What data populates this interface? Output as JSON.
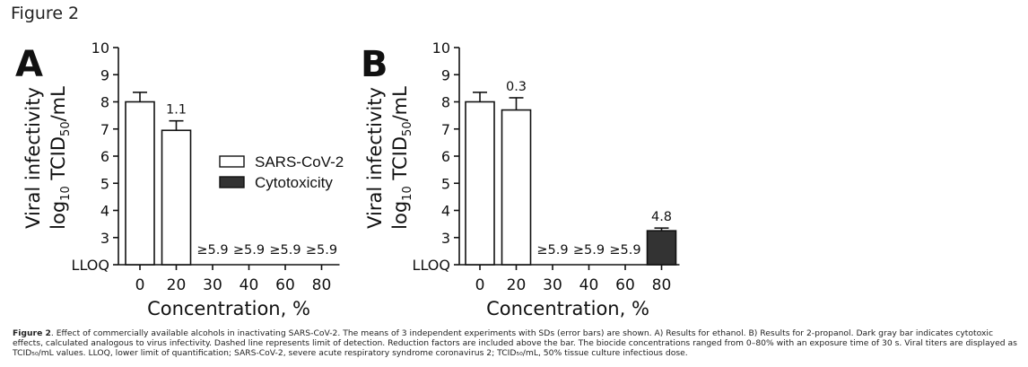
{
  "figure_title": "Figure 2",
  "caption": {
    "lead": "Figure 2",
    "text": ". Effect of commercially available alcohols in inactivating SARS-CoV-2. The means of 3 independent experiments with SDs (error bars) are shown. A) Results for ethanol. B) Results for 2-propanol. Dark gray bar indicates cytotoxic effects, calculated analogous to virus infectivity. Dashed line represents limit of detection. Reduction factors are included above the bar. The biocide concentrations ranged from 0–80% with an exposure time of 30 s. Viral titers are displayed as TCID₅₀/mL values. LLOQ, lower limit of quantification; SARS-CoV-2, severe acute respiratory syndrome coronavirus 2; TCID₅₀/mL, 50% tissue culture infectious dose."
  },
  "legend": {
    "items": [
      {
        "label": "SARS-CoV-2",
        "color": "#ffffff"
      },
      {
        "label": "Cytotoxicity",
        "color": "#333333"
      }
    ]
  },
  "colors": {
    "virus_bar": "#ffffff",
    "cytotoxicity_bar": "#333333",
    "axis": "#111111"
  },
  "chart_data": [
    {
      "type": "bar",
      "panel": "A",
      "xlabel": "Concentration, %",
      "ylabel_line1": "Viral infectivity",
      "ylabel_line2_prefix": "log",
      "ylabel_line2_sub": "10",
      "ylabel_line2_mid": " TCID",
      "ylabel_line2_sub2": "50",
      "ylabel_line2_suffix": "/mL",
      "ylim": [
        2,
        10
      ],
      "yticks": [
        "LLOQ",
        "3",
        "4",
        "5",
        "6",
        "7",
        "8",
        "9",
        "10"
      ],
      "categories": [
        "0",
        "20",
        "30",
        "40",
        "60",
        "80"
      ],
      "values": [
        8.0,
        6.95,
        null,
        null,
        null,
        null
      ],
      "errors": [
        0.35,
        0.35,
        null,
        null,
        null,
        null
      ],
      "bar_type": [
        "virus",
        "virus",
        "none",
        "none",
        "none",
        "none"
      ],
      "annotations": [
        "",
        "1.1",
        "≥5.9",
        "≥5.9",
        "≥5.9",
        "≥5.9"
      ]
    },
    {
      "type": "bar",
      "panel": "B",
      "xlabel": "Concentration, %",
      "ylabel_line1": "Viral infectivity",
      "ylabel_line2_prefix": "log",
      "ylabel_line2_sub": "10",
      "ylabel_line2_mid": " TCID",
      "ylabel_line2_sub2": "50",
      "ylabel_line2_suffix": "/mL",
      "ylim": [
        2,
        10
      ],
      "yticks": [
        "LLOQ",
        "3",
        "4",
        "5",
        "6",
        "7",
        "8",
        "9",
        "10"
      ],
      "categories": [
        "0",
        "20",
        "30",
        "40",
        "60",
        "80"
      ],
      "values": [
        8.0,
        7.7,
        null,
        null,
        null,
        3.25
      ],
      "errors": [
        0.35,
        0.45,
        null,
        null,
        null,
        0.1
      ],
      "bar_type": [
        "virus",
        "virus",
        "none",
        "none",
        "none",
        "cytotoxicity"
      ],
      "annotations": [
        "",
        "0.3",
        "≥5.9",
        "≥5.9",
        "≥5.9",
        "4.8"
      ]
    }
  ]
}
